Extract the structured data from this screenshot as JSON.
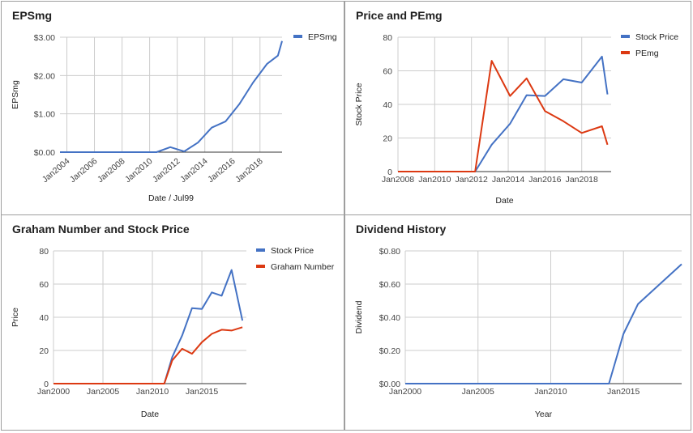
{
  "chart_data": [
    {
      "type": "line",
      "title": "EPSmg",
      "xlabel": "Date / Jul99",
      "ylabel": "EPSmg",
      "x_ticks": [
        "Jan2004",
        "Jan2006",
        "Jan2008",
        "Jan2010",
        "Jan2012",
        "Jan2014",
        "Jan2016",
        "Jan2018"
      ],
      "y_ticks": [
        "$0.00",
        "$1.00",
        "$2.00",
        "$3.00"
      ],
      "xlim": [
        2003.5,
        2019.6
      ],
      "ylim": [
        0,
        3
      ],
      "grid": true,
      "legend": "top-right",
      "series": [
        {
          "name": "EPSmg",
          "color": "#4472c4",
          "points": [
            [
              2003.5,
              0
            ],
            [
              2010.5,
              0
            ],
            [
              2011.5,
              0.13
            ],
            [
              2012.5,
              0.02
            ],
            [
              2013.5,
              0.25
            ],
            [
              2014.5,
              0.64
            ],
            [
              2015.5,
              0.8
            ],
            [
              2016.5,
              1.25
            ],
            [
              2017.5,
              1.82
            ],
            [
              2018.5,
              2.3
            ],
            [
              2019.3,
              2.52
            ],
            [
              2019.6,
              2.9
            ]
          ]
        }
      ]
    },
    {
      "type": "line",
      "title": "Price and PEmg",
      "xlabel": "Date",
      "ylabel": "Stock Price",
      "x_ticks": [
        "Jan2008",
        "Jan2010",
        "Jan2012",
        "Jan2014",
        "Jan2016",
        "Jan2018"
      ],
      "y_ticks": [
        "0",
        "20",
        "40",
        "60",
        "80"
      ],
      "xlim": [
        2008,
        2019.6
      ],
      "ylim": [
        0,
        80
      ],
      "grid": true,
      "legend": "top-right",
      "series": [
        {
          "name": "Stock Price",
          "color": "#4472c4",
          "points": [
            [
              2008,
              0
            ],
            [
              2012,
              0
            ],
            [
              2012.2,
              0
            ],
            [
              2013.1,
              16
            ],
            [
              2014.1,
              28.5
            ],
            [
              2015.0,
              45.5
            ],
            [
              2016.0,
              45.0
            ],
            [
              2017.0,
              55.0
            ],
            [
              2018.0,
              53.0
            ],
            [
              2019.1,
              68.5
            ],
            [
              2019.4,
              46.0
            ]
          ]
        },
        {
          "name": "PEmg",
          "color": "#dc3912",
          "points": [
            [
              2008,
              0
            ],
            [
              2012,
              0
            ],
            [
              2012.2,
              0
            ],
            [
              2013.1,
              66.0
            ],
            [
              2014.1,
              45.0
            ],
            [
              2015.0,
              55.5
            ],
            [
              2016.0,
              36.0
            ],
            [
              2017.0,
              30.0
            ],
            [
              2018.0,
              23.0
            ],
            [
              2019.1,
              27.0
            ],
            [
              2019.4,
              16.0
            ]
          ]
        }
      ]
    },
    {
      "type": "line",
      "title": "Graham Number and Stock Price",
      "xlabel": "Date",
      "ylabel": "Price",
      "x_ticks": [
        "Jan2000",
        "Jan2005",
        "Jan2010",
        "Jan2015"
      ],
      "y_ticks": [
        "0",
        "20",
        "40",
        "60",
        "80"
      ],
      "xlim": [
        2000,
        2019.5
      ],
      "ylim": [
        0,
        80
      ],
      "grid": true,
      "legend": "top-right",
      "series": [
        {
          "name": "Stock Price",
          "color": "#4472c4",
          "points": [
            [
              2000,
              0
            ],
            [
              2011.2,
              0
            ],
            [
              2012.0,
              16.0
            ],
            [
              2013.0,
              29.0
            ],
            [
              2014.0,
              45.5
            ],
            [
              2015.0,
              45.0
            ],
            [
              2016.0,
              55.0
            ],
            [
              2017.0,
              53.0
            ],
            [
              2018.0,
              68.5
            ],
            [
              2019.1,
              38.0
            ]
          ]
        },
        {
          "name": "Graham Number",
          "color": "#dc3912",
          "points": [
            [
              2000,
              0
            ],
            [
              2011.2,
              0
            ],
            [
              2012.0,
              14.0
            ],
            [
              2013.0,
              21.0
            ],
            [
              2014.0,
              18.0
            ],
            [
              2015.0,
              25.0
            ],
            [
              2016.0,
              30.0
            ],
            [
              2017.0,
              32.5
            ],
            [
              2018.0,
              32.0
            ],
            [
              2019.1,
              34.0
            ]
          ]
        }
      ]
    },
    {
      "type": "line",
      "title": "Dividend History",
      "xlabel": "Year",
      "ylabel": "Dividend",
      "x_ticks": [
        "Jan2000",
        "Jan2005",
        "Jan2010",
        "Jan2015"
      ],
      "y_ticks": [
        "$0.00",
        "$0.20",
        "$0.40",
        "$0.60",
        "$0.80"
      ],
      "xlim": [
        2000,
        2019
      ],
      "ylim": [
        0,
        0.8
      ],
      "grid": true,
      "legend": "none",
      "series": [
        {
          "name": "",
          "color": "#4472c4",
          "points": [
            [
              2000,
              0
            ],
            [
              2014.0,
              0
            ],
            [
              2015.0,
              0.3
            ],
            [
              2016.0,
              0.48
            ],
            [
              2019.0,
              0.72
            ]
          ]
        }
      ]
    }
  ]
}
